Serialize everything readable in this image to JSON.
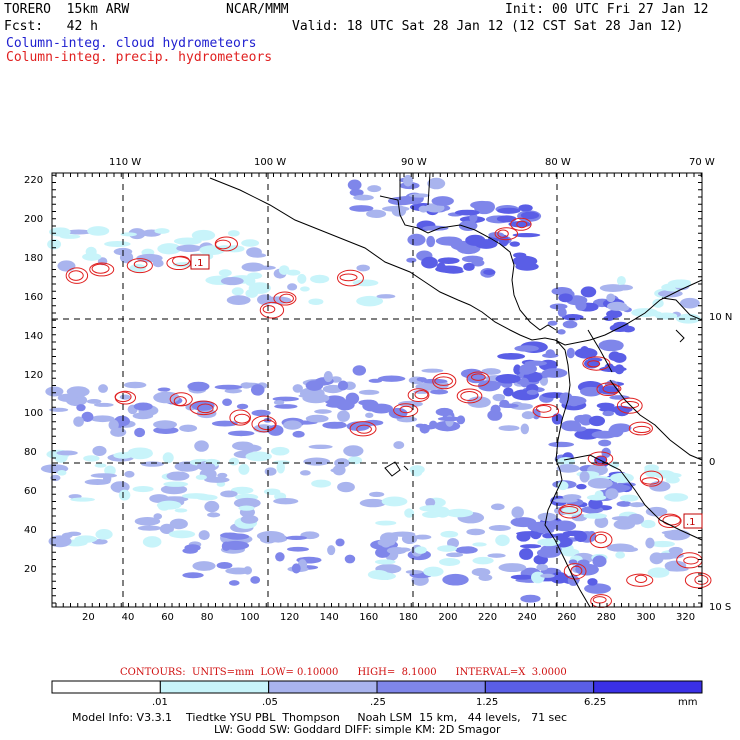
{
  "header": {
    "model": "TORERO  15km ARW",
    "org": "NCAR/MMM",
    "init": "Init: 00 UTC Fri 27 Jan 12",
    "fcst": "Fcst:   42 h",
    "valid": "Valid: 18 UTC Sat 28 Jan 12 (12 CST Sat 28 Jan 12)"
  },
  "legend": {
    "cloud": "Column-integ. cloud hydrometeors",
    "precip": "Column-integ. precip. hydrometeors",
    "cloud_color": "#2020d0",
    "precip_color": "#e02020"
  },
  "axes": {
    "lon_labels": [
      "110 W",
      "100 W",
      "90 W",
      "80 W",
      "70 W"
    ],
    "lat_labels": [
      "10 N",
      "0",
      "10 S"
    ],
    "x_ticks": [
      "20",
      "40",
      "60",
      "80",
      "100",
      "120",
      "140",
      "160",
      "180",
      "200",
      "220",
      "240",
      "260",
      "280",
      "300",
      "320"
    ],
    "y_ticks": [
      "220",
      "200",
      "180",
      "160",
      "140",
      "120",
      "100",
      "80",
      "60",
      "40",
      "20"
    ]
  },
  "contour_labels": [
    ".1",
    ".1"
  ],
  "contours_line": "CONTOURS:  UNITS=mm  LOW= 0.10000      HIGH=  8.1000      INTERVAL=X  3.0000",
  "colorbar": {
    "labels": [
      ".01",
      ".05",
      ".25",
      "1.25",
      "6.25"
    ],
    "unit": "mm",
    "colors": [
      "#ffffff",
      "#c8f4fa",
      "#a9b4ee",
      "#7f86ea",
      "#5a5ee6",
      "#3a30e6"
    ]
  },
  "model_info": {
    "line1": "Model Info: V3.3.1    Tiedtke YSU PBL  Thompson     Noah LSM  15 km,   44 levels,   71 sec",
    "line2": "LW: Godd SW: Goddard DIFF: simple KM: 2D Smagor"
  }
}
